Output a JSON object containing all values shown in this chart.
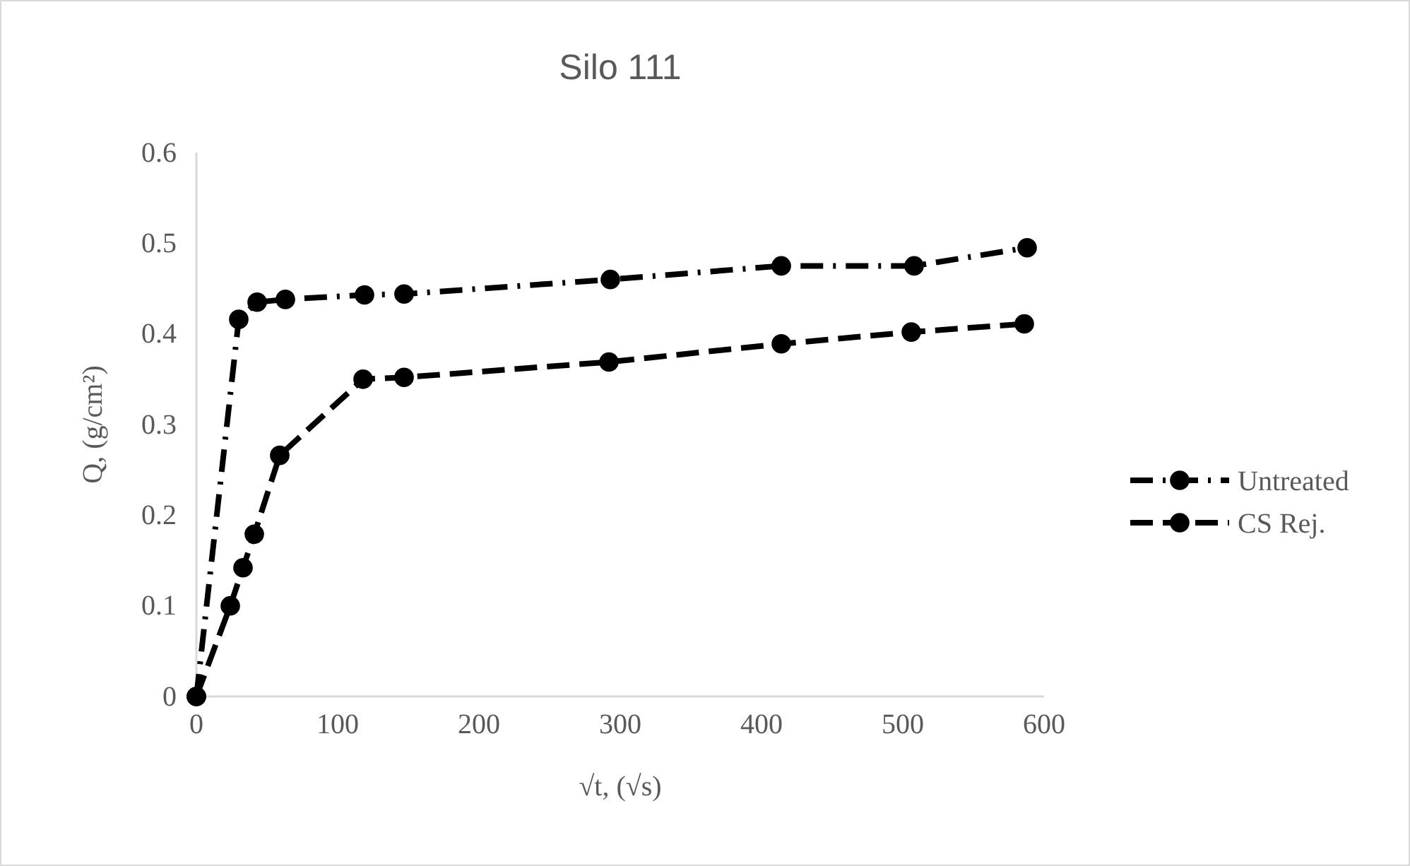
{
  "chart_data": {
    "type": "line",
    "title": "Silo 111",
    "xlabel": "√t, (√s)",
    "ylabel": "Q, (g/cm²)",
    "xlim": [
      0,
      600
    ],
    "xticks": [
      0,
      100,
      200,
      300,
      400,
      500,
      600
    ],
    "ylim": [
      0,
      0.6
    ],
    "yticks": [
      0,
      0.1,
      0.2,
      0.3,
      0.4,
      0.5,
      0.6
    ],
    "grid": false,
    "legend": "right",
    "marker": "circle",
    "series": [
      {
        "name": "Untreated",
        "color": "#000000",
        "line_style": "dashdot",
        "x": [
          0,
          30,
          43,
          63,
          119,
          147,
          293,
          414,
          508,
          588
        ],
        "values": [
          0,
          0.416,
          0.435,
          0.438,
          0.443,
          0.444,
          0.46,
          0.475,
          0.475,
          0.495
        ]
      },
      {
        "name": "CS Rej.",
        "color": "#000000",
        "line_style": "dashed",
        "x": [
          0,
          24,
          33,
          41,
          59,
          118,
          147,
          292,
          414,
          506,
          586
        ],
        "values": [
          0,
          0.1,
          0.142,
          0.179,
          0.266,
          0.35,
          0.352,
          0.369,
          0.389,
          0.402,
          0.411
        ]
      }
    ]
  }
}
